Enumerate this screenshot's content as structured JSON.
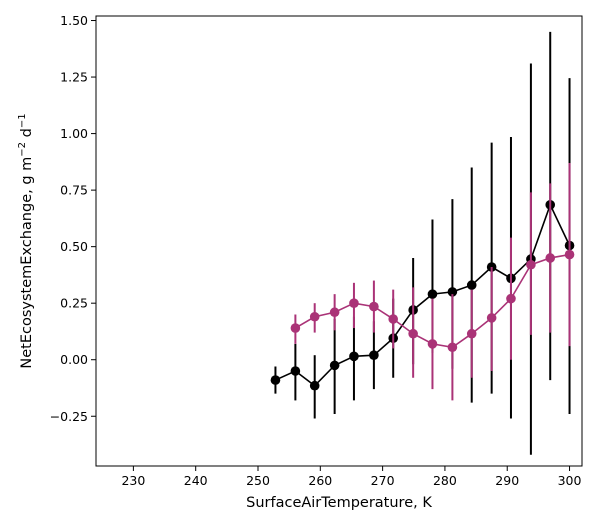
{
  "chart_data": {
    "type": "line",
    "title": "",
    "xlabel": "SurfaceAirTemperature,  K",
    "ylabel": "NetEcosystemExchange,  g m",
    "ylabel_sup1": "−2",
    "ylabel_mid": " d",
    "ylabel_sup2": "−1",
    "xlim": [
      224,
      302
    ],
    "ylim": [
      -0.47,
      1.52
    ],
    "xticks": [
      230,
      240,
      250,
      260,
      270,
      280,
      290,
      300
    ],
    "yticks": [
      -0.25,
      0.0,
      0.25,
      0.5,
      0.75,
      1.0,
      1.25,
      1.5
    ],
    "ytick_labels": [
      "−0.25",
      "0.00",
      "0.25",
      "0.50",
      "0.75",
      "1.00",
      "1.25",
      "1.50"
    ],
    "grid": false,
    "series": [
      {
        "color": "#000000",
        "x": [
          252.8,
          256.0,
          259.1,
          262.3,
          265.4,
          268.6,
          271.7,
          274.9,
          278.0,
          281.2,
          284.3,
          287.5,
          290.6,
          293.8,
          296.9,
          300.0
        ],
        "y": [
          -0.09,
          -0.05,
          -0.115,
          -0.025,
          0.015,
          0.02,
          0.095,
          0.22,
          0.29,
          0.3,
          0.33,
          0.41,
          0.36,
          0.445,
          0.685,
          0.505
        ],
        "err_low": [
          -0.15,
          -0.18,
          -0.26,
          -0.24,
          -0.18,
          -0.13,
          -0.08,
          -0.02,
          0.03,
          -0.04,
          -0.19,
          -0.15,
          -0.26,
          -0.42,
          -0.09,
          -0.24
        ],
        "err_high": [
          -0.03,
          0.07,
          0.02,
          0.18,
          0.19,
          0.17,
          0.27,
          0.45,
          0.62,
          0.71,
          0.85,
          0.96,
          0.985,
          1.31,
          1.45,
          1.245
        ]
      },
      {
        "color": "#aa3377",
        "x": [
          256.0,
          259.1,
          262.3,
          265.4,
          268.6,
          271.7,
          274.9,
          278.0,
          281.2,
          284.3,
          287.5,
          290.6,
          293.8,
          296.9,
          300.0
        ],
        "y": [
          0.14,
          0.19,
          0.21,
          0.25,
          0.235,
          0.18,
          0.115,
          0.07,
          0.055,
          0.115,
          0.185,
          0.27,
          0.42,
          0.45,
          0.465
        ],
        "err_low": [
          0.07,
          0.12,
          0.13,
          0.14,
          0.12,
          0.05,
          -0.08,
          -0.13,
          -0.18,
          -0.08,
          -0.05,
          0.0,
          0.11,
          0.12,
          0.06
        ],
        "err_high": [
          0.2,
          0.25,
          0.29,
          0.34,
          0.35,
          0.31,
          0.32,
          0.27,
          0.29,
          0.31,
          0.41,
          0.54,
          0.74,
          0.78,
          0.87
        ]
      }
    ]
  }
}
